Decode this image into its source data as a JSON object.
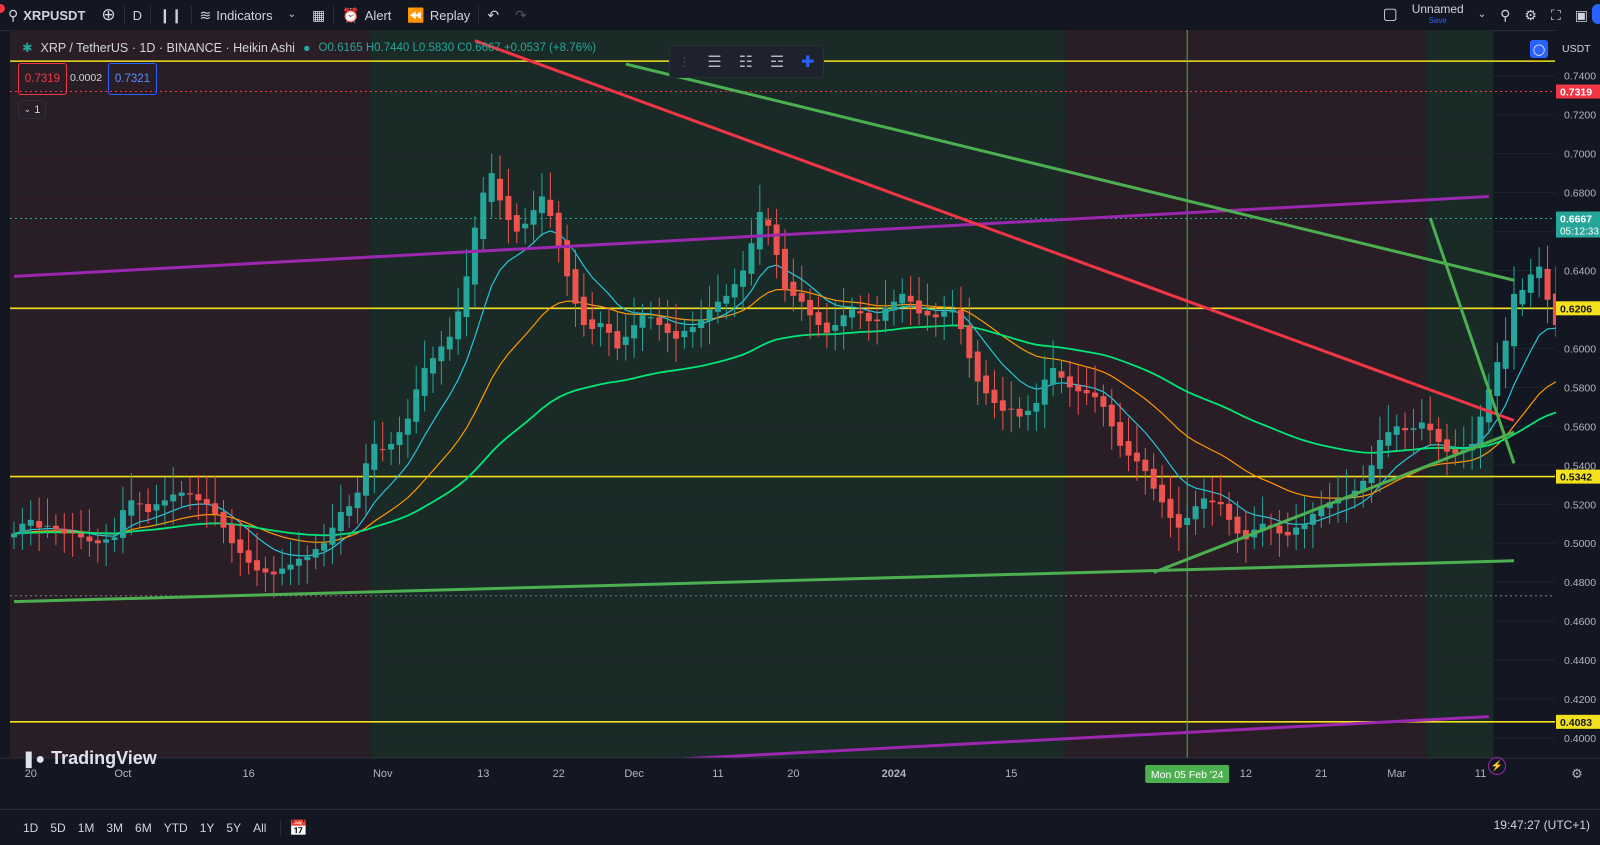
{
  "toolbar": {
    "symbol": "XRPUSDT",
    "interval": "D",
    "indicators": "Indicators",
    "alert": "Alert",
    "replay": "Replay",
    "layout_name": "Unnamed",
    "layout_save": "Save"
  },
  "legend": {
    "title": "XRP / TetherUS · 1D · BINANCE · Heikin Ashi",
    "ohlc": "O0.6165 H0.7440 L0.5830 C0.6667 +0.0537 (+8.76%)",
    "bid": "0.7319",
    "spread": "0.0002",
    "ask": "0.7321",
    "indicator_count": "1"
  },
  "logo_text": "TradingView",
  "bottom": {
    "timeframes": [
      "1D",
      "5D",
      "1M",
      "3M",
      "6M",
      "YTD",
      "1Y",
      "5Y",
      "All"
    ],
    "clock": "19:47:27 (UTC+1)"
  },
  "colors": {
    "up": "#26a69a",
    "down": "#ef5350",
    "hline": "#f4e11d",
    "purple": "#9c27b0",
    "greenline": "#4caf50",
    "redline": "#f23645"
  },
  "chart_data": {
    "type": "candlestick",
    "symbol": "XRP / TetherUS",
    "exchange": "BINANCE",
    "style": "Heikin Ashi",
    "quote": "USDT",
    "ylim": [
      0.39,
      0.75
    ],
    "y_ticks": [
      "0.7400",
      "0.7200",
      "0.7000",
      "0.6800",
      "0.6600",
      "0.6400",
      "0.6200",
      "0.6000",
      "0.5800",
      "0.5600",
      "0.5400",
      "0.5200",
      "0.5000",
      "0.4800",
      "0.4600",
      "0.4400",
      "0.4200",
      "0.4000"
    ],
    "x_ticks": [
      "20",
      "Oct",
      "16",
      "Nov",
      "13",
      "22",
      "Dec",
      "11",
      "20",
      "2024",
      "15",
      "12",
      "21",
      "Mar",
      "11"
    ],
    "crosshair_date": "Mon 05 Feb '24",
    "price_labels": [
      {
        "value": "0.7319",
        "type": "bid"
      },
      {
        "value": "0.6667",
        "type": "last",
        "countdown": "05:12:33"
      },
      {
        "value": "0.6206",
        "type": "level"
      },
      {
        "value": "0.5342",
        "type": "level"
      },
      {
        "value": "0.4083",
        "type": "level"
      }
    ],
    "horizontal_levels": [
      0.7475,
      0.6206,
      0.5342,
      0.4083
    ],
    "series": [
      {
        "name": "close",
        "start": "2023-09-18",
        "close": [
          0.505,
          0.51,
          0.512,
          0.508,
          0.509,
          0.507,
          0.505,
          0.505,
          0.503,
          0.501,
          0.5,
          0.502,
          0.503,
          0.517,
          0.522,
          0.52,
          0.516,
          0.52,
          0.522,
          0.525,
          0.526,
          0.525,
          0.522,
          0.52,
          0.515,
          0.508,
          0.5,
          0.495,
          0.49,
          0.486,
          0.485,
          0.484,
          0.487,
          0.489,
          0.492,
          0.493,
          0.497,
          0.5,
          0.508,
          0.516,
          0.519,
          0.526,
          0.541,
          0.551,
          0.548,
          0.551,
          0.557,
          0.564,
          0.579,
          0.59,
          0.595,
          0.601,
          0.606,
          0.619,
          0.637,
          0.662,
          0.68,
          0.69,
          0.676,
          0.666,
          0.66,
          0.664,
          0.671,
          0.678,
          0.668,
          0.652,
          0.637,
          0.623,
          0.612,
          0.61,
          0.613,
          0.608,
          0.6,
          0.606,
          0.612,
          0.617,
          0.616,
          0.612,
          0.608,
          0.605,
          0.609,
          0.611,
          0.615,
          0.62,
          0.624,
          0.627,
          0.633,
          0.64,
          0.654,
          0.67,
          0.663,
          0.648,
          0.63,
          0.627,
          0.624,
          0.617,
          0.612,
          0.608,
          0.612,
          0.617,
          0.62,
          0.618,
          0.614,
          0.614,
          0.621,
          0.624,
          0.628,
          0.624,
          0.618,
          0.617,
          0.616,
          0.619,
          0.62,
          0.61,
          0.595,
          0.583,
          0.577,
          0.572,
          0.568,
          0.569,
          0.565,
          0.568,
          0.572,
          0.584,
          0.59,
          0.585,
          0.58,
          0.578,
          0.577,
          0.575,
          0.57,
          0.56,
          0.55,
          0.545,
          0.542,
          0.537,
          0.528,
          0.521,
          0.513,
          0.508,
          0.513,
          0.519,
          0.523,
          0.521,
          0.52,
          0.512,
          0.505,
          0.502,
          0.507,
          0.51,
          0.509,
          0.505,
          0.504,
          0.508,
          0.51,
          0.515,
          0.519,
          0.521,
          0.523,
          0.524,
          0.527,
          0.532,
          0.54,
          0.553,
          0.557,
          0.56,
          0.558,
          0.559,
          0.562,
          0.558,
          0.552,
          0.547,
          0.546,
          0.548,
          0.551,
          0.565,
          0.579,
          0.593,
          0.604,
          0.628,
          0.63,
          0.638,
          0.642,
          0.625,
          0.612,
          0.61,
          0.61,
          0.611,
          0.614,
          0.616,
          0.6667
        ]
      },
      {
        "name": "EMA fast",
        "color": "#26c6da"
      },
      {
        "name": "EMA mid",
        "color": "#ff9800"
      },
      {
        "name": "EMA slow",
        "color": "#00e676"
      }
    ],
    "trendlines": [
      {
        "color": "purple",
        "from": [
          "2023-09-18",
          0.637
        ],
        "to": [
          "2024-03-12",
          0.678
        ]
      },
      {
        "color": "purple",
        "from": [
          "2023-12-01",
          0.388
        ],
        "to": [
          "2024-03-12",
          0.411
        ]
      },
      {
        "color": "red",
        "from": [
          "2023-11-12",
          0.758
        ],
        "to": [
          "2024-03-15",
          0.563
        ]
      },
      {
        "color": "green",
        "from": [
          "2023-11-30",
          0.746
        ],
        "to": [
          "2024-03-15",
          0.635
        ]
      },
      {
        "color": "green",
        "from": [
          "2023-09-18",
          0.47
        ],
        "to": [
          "2024-03-15",
          0.491
        ]
      },
      {
        "color": "green",
        "from": [
          "2024-02-01",
          0.485
        ],
        "to": [
          "2024-03-15",
          0.557
        ]
      },
      {
        "color": "green",
        "from": [
          "2024-03-05",
          0.667
        ],
        "to": [
          "2024-03-15",
          0.541
        ]
      }
    ]
  }
}
